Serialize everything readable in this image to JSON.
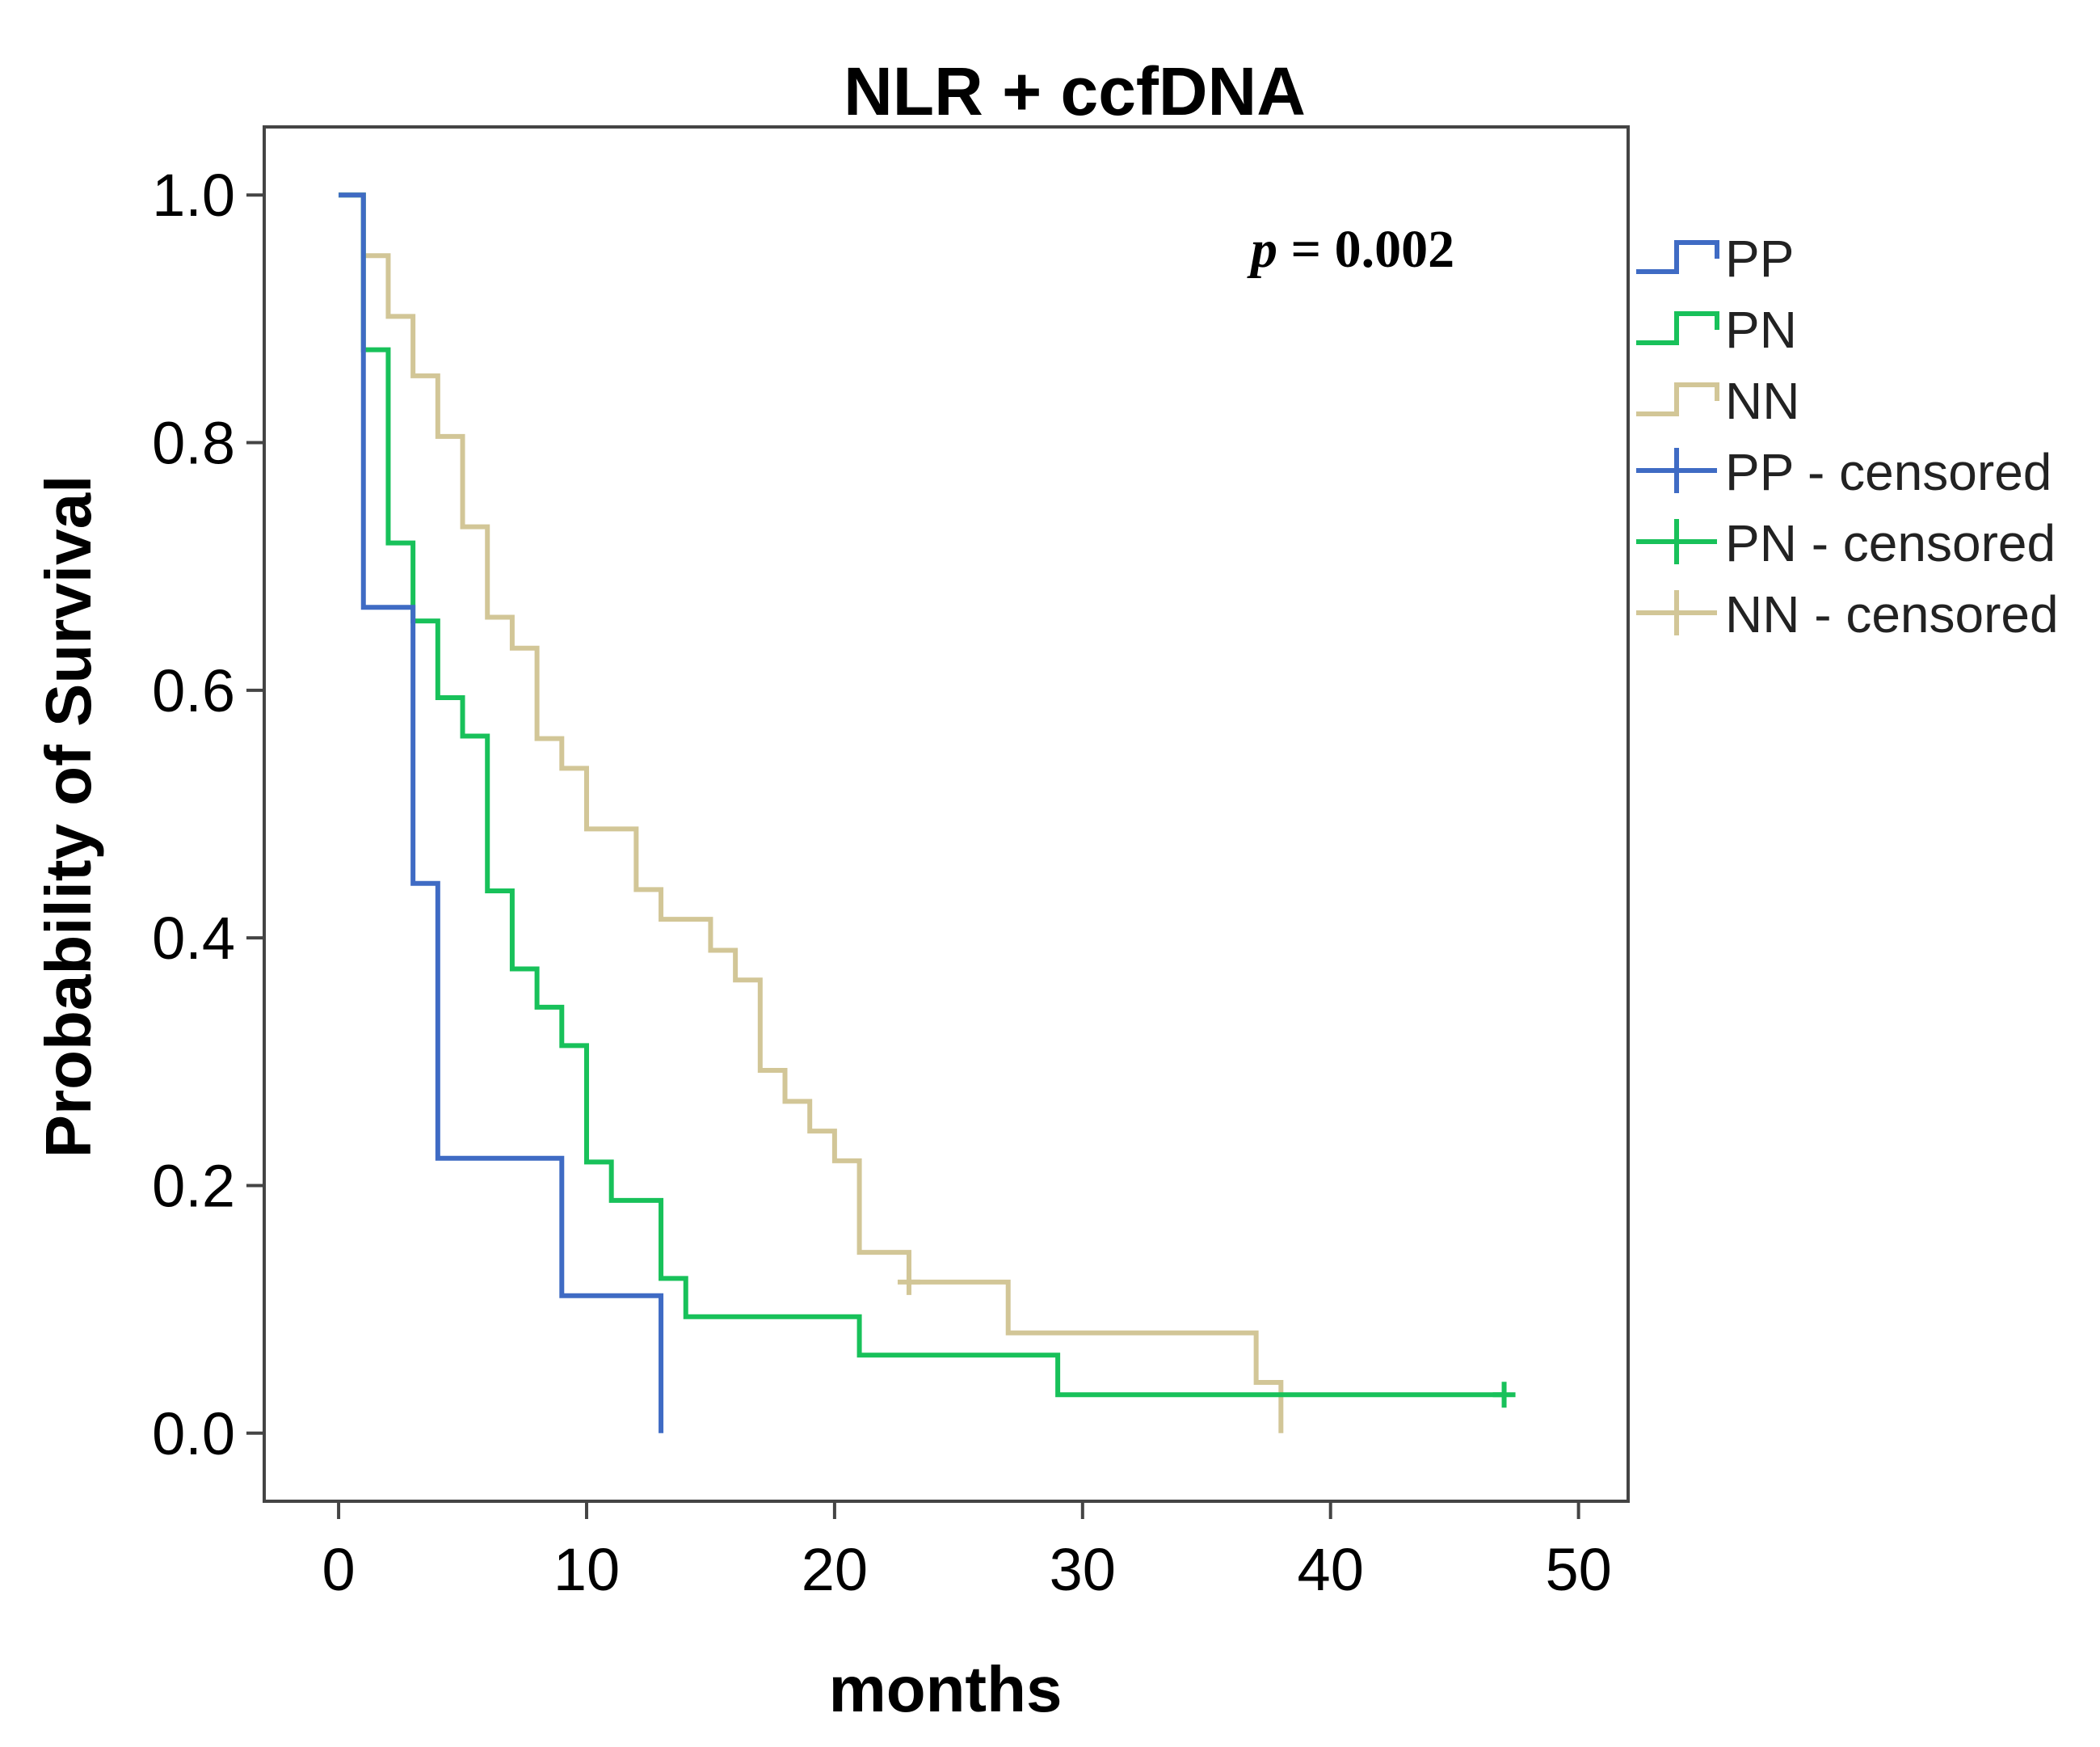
{
  "chart_data": {
    "type": "line",
    "subtype": "kaplan-meier-step",
    "title": "NLR + ccfDNA",
    "xlabel": "months",
    "ylabel": "Probability of Survival",
    "xlim": [
      -3,
      52
    ],
    "ylim": [
      -0.055,
      1.055
    ],
    "xticks": [
      0,
      10,
      20,
      30,
      40,
      50
    ],
    "yticks": [
      0.0,
      0.2,
      0.4,
      0.6,
      0.8,
      1.0
    ],
    "xtick_labels": [
      "0",
      "10",
      "20",
      "30",
      "40",
      "50"
    ],
    "ytick_labels": [
      "0.0",
      "0.2",
      "0.4",
      "0.6",
      "0.8",
      "1.0"
    ],
    "grid": false,
    "legend_position": "right",
    "annotation": {
      "italic": "p",
      "rest": " = 0.002"
    },
    "series": [
      {
        "name": "PP",
        "color": "#3f6bc4",
        "steps": [
          [
            0,
            1.0
          ],
          [
            1,
            0.667
          ],
          [
            3,
            0.444
          ],
          [
            4,
            0.222
          ],
          [
            9,
            0.111
          ],
          [
            13,
            0.0
          ]
        ],
        "end_x": 13,
        "censored": []
      },
      {
        "name": "PN",
        "color": "#18c15a",
        "steps": [
          [
            0,
            1.0
          ],
          [
            1,
            0.875
          ],
          [
            2,
            0.719
          ],
          [
            3,
            0.656
          ],
          [
            4,
            0.594
          ],
          [
            5,
            0.563
          ],
          [
            6,
            0.438
          ],
          [
            7,
            0.375
          ],
          [
            8,
            0.344
          ],
          [
            9,
            0.313
          ],
          [
            10,
            0.219
          ],
          [
            11,
            0.188
          ],
          [
            13,
            0.125
          ],
          [
            14,
            0.094
          ],
          [
            21,
            0.063
          ],
          [
            29,
            0.031
          ]
        ],
        "end_x": 47,
        "censored": [
          [
            47,
            0.031
          ]
        ]
      },
      {
        "name": "NN",
        "color": "#d2c697",
        "steps": [
          [
            0,
            1.0
          ],
          [
            1,
            0.951
          ],
          [
            2,
            0.902
          ],
          [
            3,
            0.854
          ],
          [
            4,
            0.805
          ],
          [
            5,
            0.732
          ],
          [
            6,
            0.659
          ],
          [
            7,
            0.634
          ],
          [
            8,
            0.561
          ],
          [
            9,
            0.537
          ],
          [
            10,
            0.488
          ],
          [
            12,
            0.439
          ],
          [
            13,
            0.415
          ],
          [
            15,
            0.39
          ],
          [
            16,
            0.366
          ],
          [
            17,
            0.293
          ],
          [
            18,
            0.268
          ],
          [
            19,
            0.244
          ],
          [
            20,
            0.22
          ],
          [
            21,
            0.146
          ],
          [
            23,
            0.122
          ],
          [
            27,
            0.081
          ],
          [
            37,
            0.041
          ],
          [
            38,
            0.0
          ]
        ],
        "end_x": 38,
        "censored": [
          [
            23,
            0.122
          ]
        ]
      }
    ],
    "legend": [
      {
        "label": "PP",
        "color": "#3f6bc4",
        "kind": "step"
      },
      {
        "label": "PN",
        "color": "#18c15a",
        "kind": "step"
      },
      {
        "label": "NN",
        "color": "#d2c697",
        "kind": "step"
      },
      {
        "label": "PP - censored",
        "color": "#3f6bc4",
        "kind": "cross"
      },
      {
        "label": "PN - censored",
        "color": "#18c15a",
        "kind": "cross"
      },
      {
        "label": "NN - censored",
        "color": "#d2c697",
        "kind": "cross"
      }
    ]
  }
}
